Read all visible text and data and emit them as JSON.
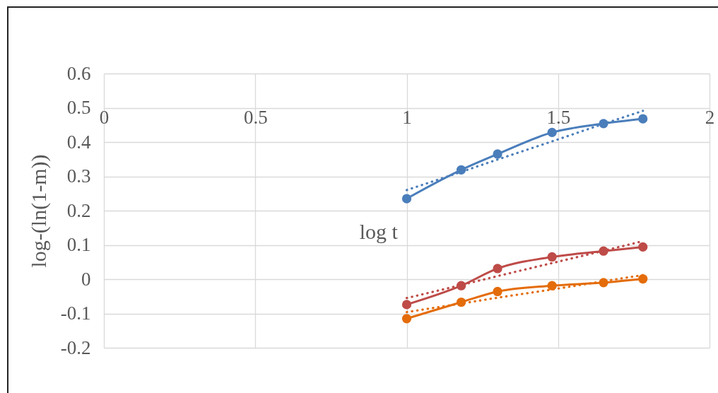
{
  "chart_data": {
    "type": "line",
    "xlabel": "log t",
    "ylabel": "log-(ln(1-m))",
    "xlim": [
      0,
      2
    ],
    "xticks": [
      0,
      0.5,
      1,
      1.5,
      2
    ],
    "ylim": [
      -0.2,
      0.6
    ],
    "yticks": [
      -0.2,
      -0.1,
      0,
      0.1,
      0.2,
      0.3,
      0.4,
      0.5,
      0.6
    ],
    "grid": true,
    "marker": "circle",
    "line_style": "solid",
    "x": [
      1,
      1.18,
      1.3,
      1.48,
      1.65,
      1.78
    ],
    "series": [
      {
        "color": "#4a7ebb",
        "values": [
          0.235,
          0.319,
          0.365,
          0.428,
          0.454,
          0.468
        ]
      },
      {
        "color": "#be4b48",
        "values": [
          -0.074,
          -0.019,
          0.031,
          0.065,
          0.082,
          0.094
        ]
      },
      {
        "color": "#e46c0a",
        "values": [
          -0.115,
          -0.067,
          -0.036,
          -0.019,
          -0.01,
          0.001
        ]
      },
      {
        "type": "line",
        "color": "#4a7ebb",
        "values": [
          0.26,
          0.313,
          0.349,
          0.402,
          0.453,
          0.491
        ],
        "line_style": "dotted",
        "marker": "none"
      },
      {
        "type": "line",
        "color": "#be4b48",
        "values": [
          -0.055,
          -0.017,
          0.009,
          0.047,
          0.083,
          0.111
        ],
        "line_style": "dotted",
        "marker": "none"
      },
      {
        "type": "line",
        "color": "#e46c0a",
        "values": [
          -0.096,
          -0.071,
          -0.054,
          -0.03,
          -0.006,
          0.012
        ],
        "line_style": "dotted",
        "marker": "none"
      }
    ]
  }
}
